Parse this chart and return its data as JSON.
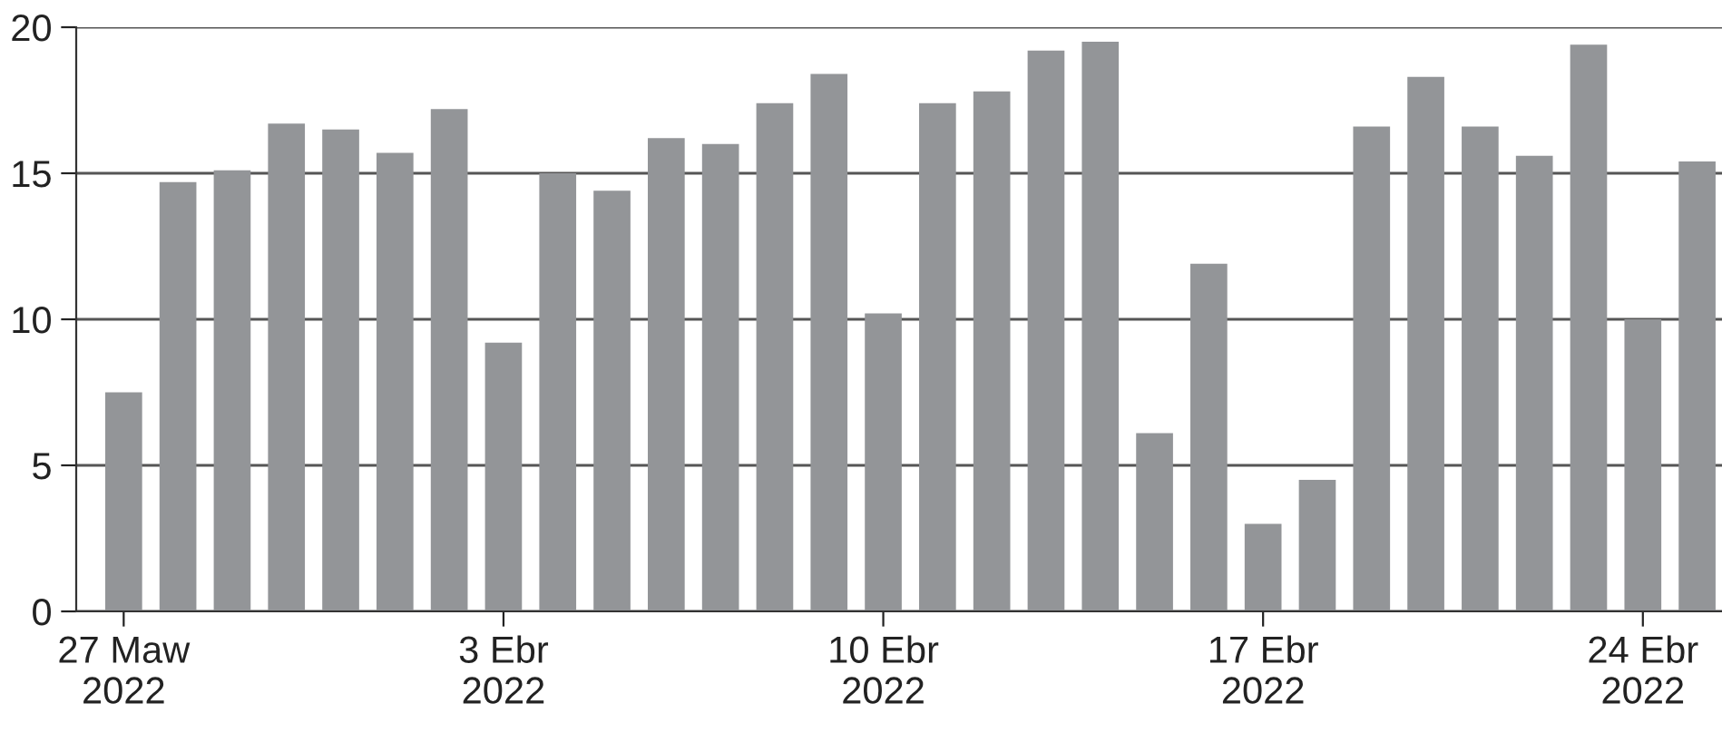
{
  "chart_data": {
    "type": "bar",
    "x": [
      "2022-03-27",
      "2022-03-28",
      "2022-03-29",
      "2022-03-30",
      "2022-03-31",
      "2022-04-01",
      "2022-04-02",
      "2022-04-03",
      "2022-04-04",
      "2022-04-05",
      "2022-04-06",
      "2022-04-07",
      "2022-04-08",
      "2022-04-09",
      "2022-04-10",
      "2022-04-11",
      "2022-04-12",
      "2022-04-13",
      "2022-04-14",
      "2022-04-15",
      "2022-04-16",
      "2022-04-17",
      "2022-04-18",
      "2022-04-19",
      "2022-04-20",
      "2022-04-21",
      "2022-04-22",
      "2022-04-23",
      "2022-04-24",
      "2022-04-25"
    ],
    "series": [
      {
        "color": "#939598",
        "values": [
          7.5,
          14.7,
          15.1,
          16.7,
          16.5,
          15.7,
          17.2,
          9.2,
          15.0,
          14.4,
          16.2,
          16.0,
          17.4,
          18.4,
          10.2,
          17.4,
          17.8,
          19.2,
          19.5,
          6.1,
          11.9,
          3.0,
          4.5,
          16.6,
          18.3,
          16.6,
          15.6,
          19.4,
          10.0,
          15.4
        ]
      }
    ],
    "xlim": [
      "2022-03-26T03:00",
      "2022-04-25T11:00"
    ],
    "xticks": [
      {
        "value": "2022-03-27",
        "label": "27 Maw\n2022"
      },
      {
        "value": "2022-04-03",
        "label": "3 Ebr\n2022"
      },
      {
        "value": "2022-04-10",
        "label": "10 Ebr\n2022"
      },
      {
        "value": "2022-04-17",
        "label": "17 Ebr\n2022"
      },
      {
        "value": "2022-04-24",
        "label": "24 Ebr\n2022"
      }
    ],
    "ylim": [
      0,
      20
    ],
    "yticks": [
      0,
      5,
      10,
      15,
      20
    ],
    "grid": "y"
  }
}
